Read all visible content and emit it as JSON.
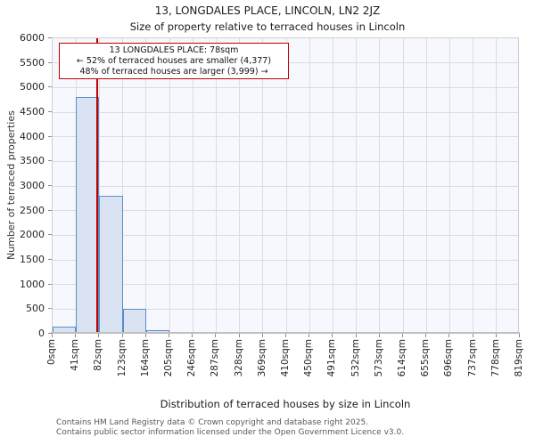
{
  "title": "13, LONGDALES PLACE, LINCOLN, LN2 2JZ",
  "subtitle": "Size of property relative to terraced houses in Lincoln",
  "annotation": {
    "line1": "13 LONGDALES PLACE: 78sqm",
    "line2": "← 52% of terraced houses are smaller (4,377)",
    "line3": "48% of terraced houses are larger (3,999) →"
  },
  "chart_data": {
    "type": "bar",
    "title": "13, LONGDALES PLACE, LINCOLN, LN2 2JZ",
    "subtitle": "Size of property relative to terraced houses in Lincoln",
    "xlabel": "Distribution of terraced houses by size in Lincoln",
    "ylabel": "Number of terraced properties",
    "x_tick_labels": [
      "0sqm",
      "41sqm",
      "82sqm",
      "123sqm",
      "164sqm",
      "205sqm",
      "246sqm",
      "287sqm",
      "328sqm",
      "369sqm",
      "410sqm",
      "450sqm",
      "491sqm",
      "532sqm",
      "573sqm",
      "614sqm",
      "655sqm",
      "696sqm",
      "737sqm",
      "778sqm",
      "819sqm"
    ],
    "bin_edges_sqm": [
      0,
      41,
      82,
      123,
      164,
      205,
      246,
      287,
      328,
      369,
      410,
      450,
      491,
      532,
      573,
      614,
      655,
      696,
      737,
      778,
      819
    ],
    "values": [
      150,
      4800,
      2800,
      500,
      75,
      20,
      0,
      0,
      0,
      0,
      0,
      0,
      0,
      0,
      0,
      0,
      0,
      0,
      0,
      0
    ],
    "y_ticks": [
      0,
      500,
      1000,
      1500,
      2000,
      2500,
      3000,
      3500,
      4000,
      4500,
      5000,
      5500,
      6000
    ],
    "ylim": [
      0,
      6000
    ],
    "xlim_sqm": [
      0,
      820
    ],
    "grid": true,
    "marker_value_sqm": 78,
    "marker_color": "#c00000",
    "bar_fill": "#d9e3f2",
    "bar_edge": "#5b8dc9",
    "plot_bg": "#f6f8fd"
  },
  "footer": {
    "line1": "Contains HM Land Registry data © Crown copyright and database right 2025.",
    "line2": "Contains public sector information licensed under the Open Government Licence v3.0."
  }
}
